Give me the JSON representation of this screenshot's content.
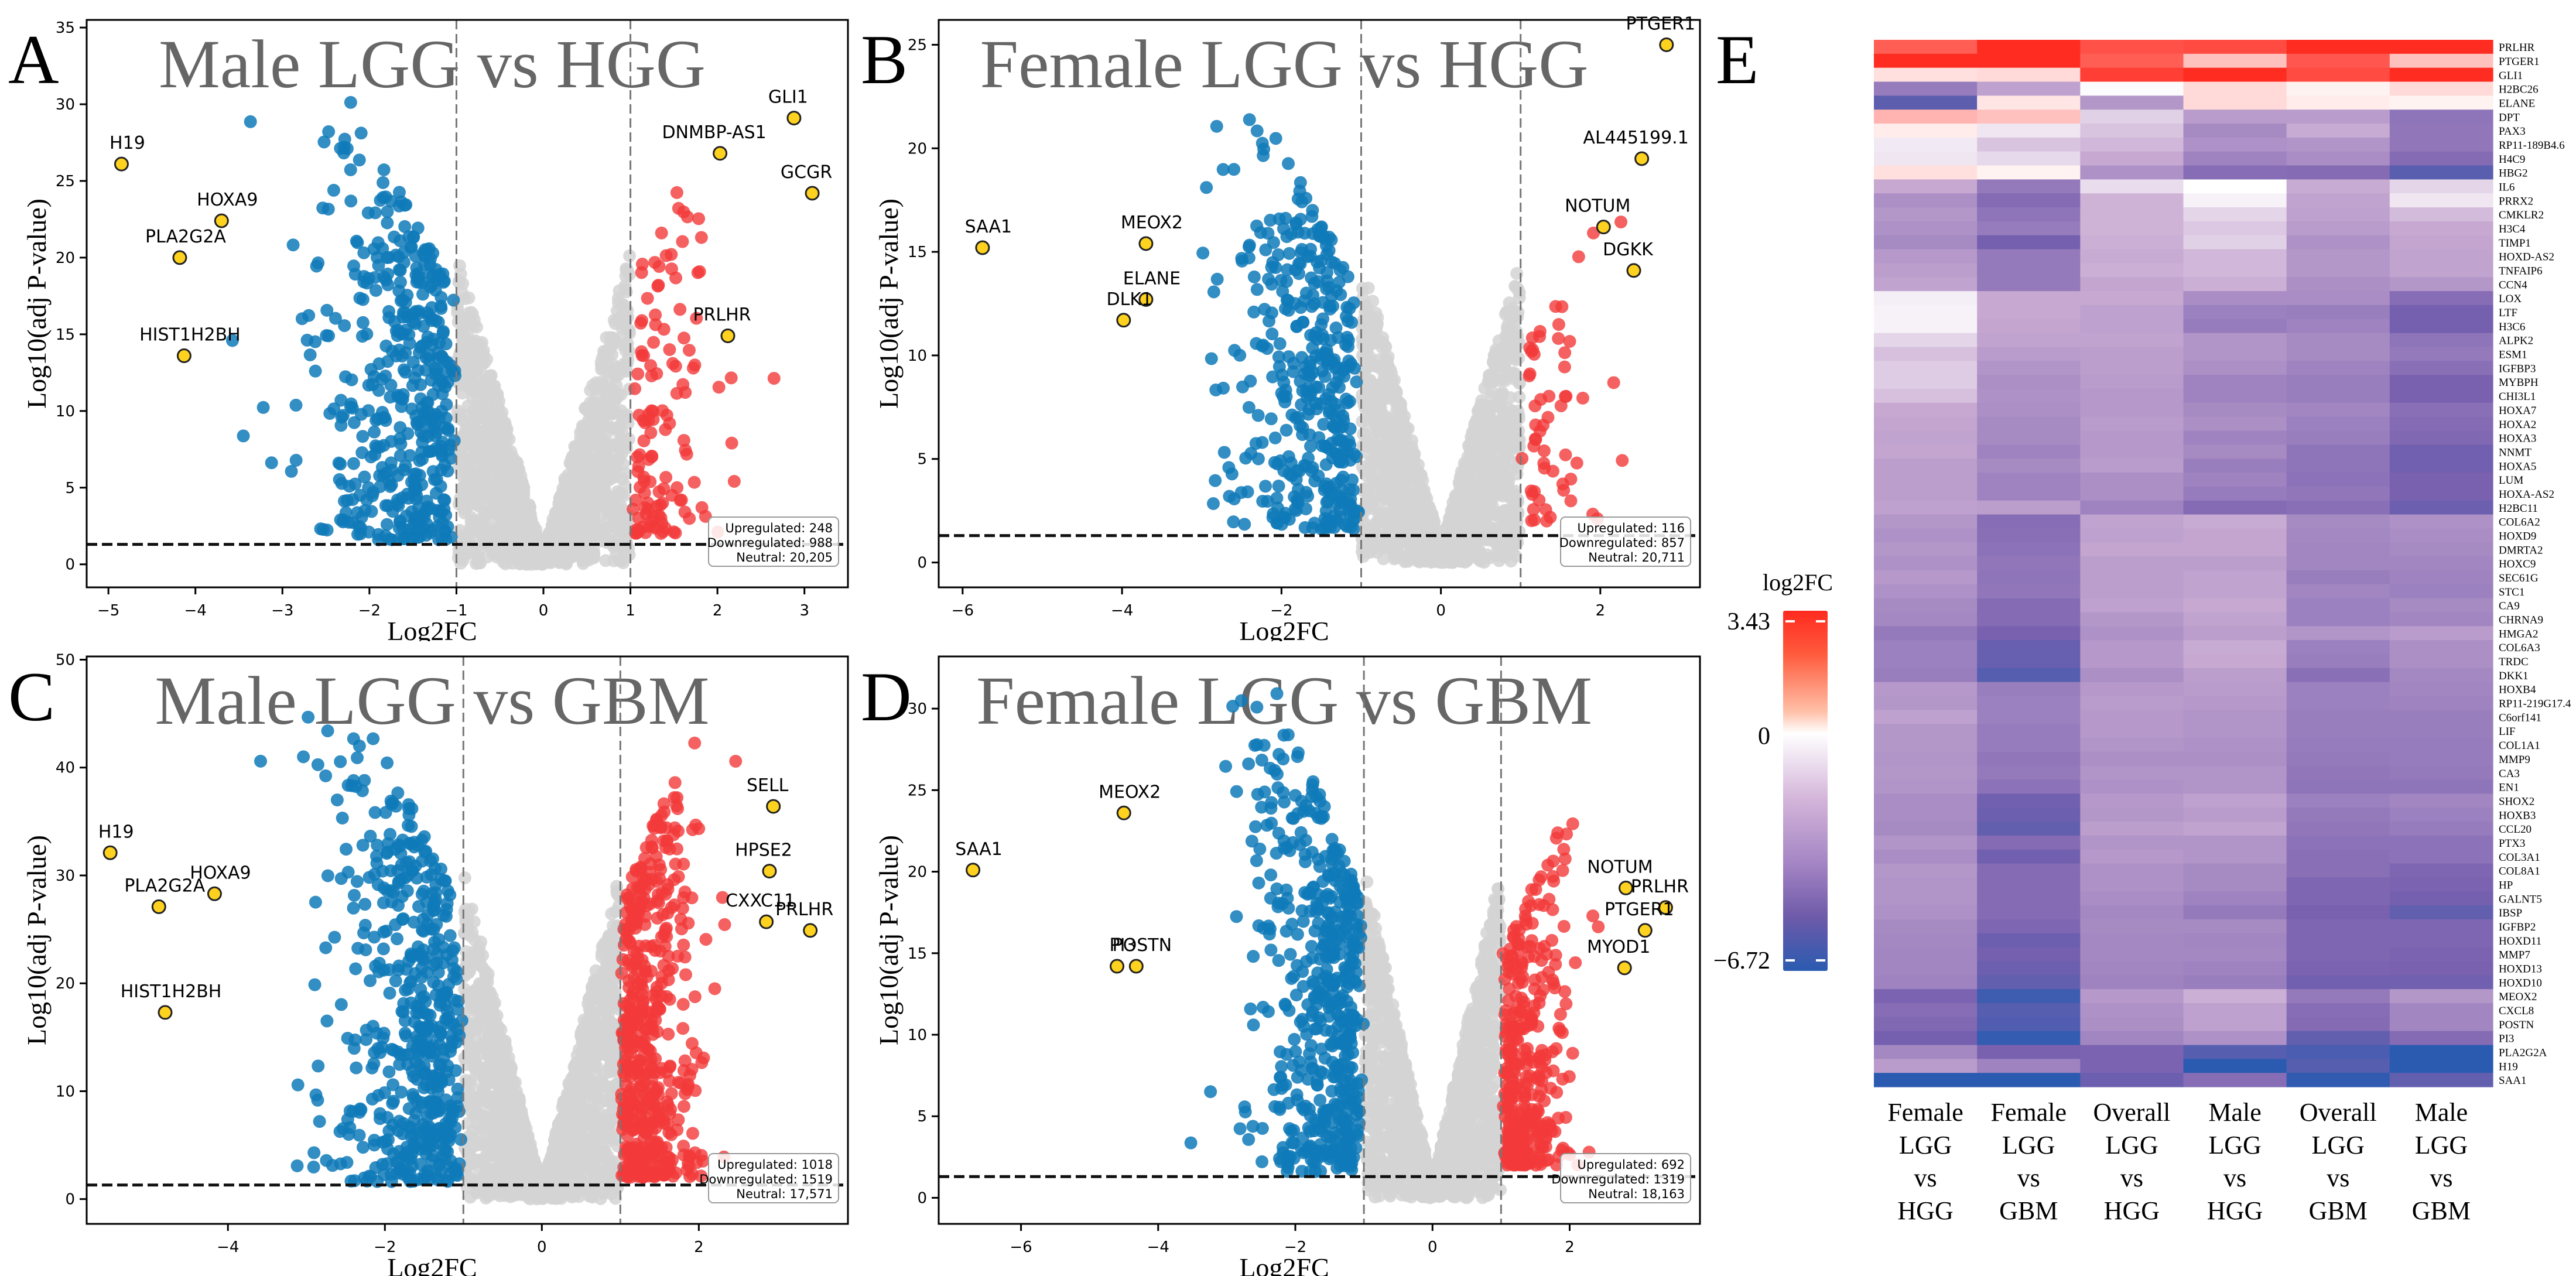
{
  "chart_data": [
    {
      "panel": "A",
      "type": "scatter",
      "subtype": "volcano",
      "title": "Male LGG vs HGG",
      "xlabel": "Log2FC",
      "ylabel": "Log10(adj P-value)",
      "xlim": [
        -5.25,
        3.5
      ],
      "ylim": [
        -1.5,
        35.5
      ],
      "xticks": [
        -5,
        -4,
        -3,
        -2,
        -1,
        0,
        1,
        2,
        3
      ],
      "yticks": [
        0,
        5,
        10,
        15,
        20,
        25,
        30,
        35
      ],
      "fc_threshold": 1,
      "p_threshold_line": 1.3,
      "max_down_y": 31,
      "max_up_y": 31.5,
      "counts": {
        "up_label": "Upregulated",
        "up": "248",
        "down_label": "Downregulated",
        "down": "988",
        "neutral_label": "Neutral",
        "neutral": "20,205"
      },
      "counts_n": {
        "up": 248,
        "down": 988,
        "neutral": 20205
      },
      "labeled_genes": [
        {
          "gene": "H19",
          "x": -4.85,
          "y": 26.1
        },
        {
          "gene": "HOXA9",
          "x": -3.7,
          "y": 22.4
        },
        {
          "gene": "PLA2G2A",
          "x": -4.18,
          "y": 20.0
        },
        {
          "gene": "HIST1H2BH",
          "x": -4.13,
          "y": 13.6
        },
        {
          "gene": "GLI1",
          "x": 2.88,
          "y": 29.1
        },
        {
          "gene": "DNMBP-AS1",
          "x": 2.03,
          "y": 26.8
        },
        {
          "gene": "GCGR",
          "x": 3.09,
          "y": 24.2
        },
        {
          "gene": "PRLHR",
          "x": 2.12,
          "y": 14.9
        }
      ]
    },
    {
      "panel": "B",
      "type": "scatter",
      "subtype": "volcano",
      "title": "Female LGG vs HGG",
      "xlabel": "Log2FC",
      "ylabel": "Log10(adj P-value)",
      "xlim": [
        -6.3,
        3.25
      ],
      "ylim": [
        -1.2,
        26.2
      ],
      "xticks": [
        -6,
        -4,
        -2,
        0,
        2
      ],
      "yticks": [
        0,
        5,
        10,
        15,
        20,
        25
      ],
      "fc_threshold": 1,
      "p_threshold_line": 1.3,
      "max_down_y": 22.6,
      "max_up_y": 17.7,
      "counts": {
        "up_label": "Upregulated",
        "up": "116",
        "down_label": "Downregulated",
        "down": "857",
        "neutral_label": "Neutral",
        "neutral": "20,711"
      },
      "counts_n": {
        "up": 116,
        "down": 857,
        "neutral": 20711
      },
      "labeled_genes": [
        {
          "gene": "SAA1",
          "x": -5.75,
          "y": 15.2
        },
        {
          "gene": "MEOX2",
          "x": -3.7,
          "y": 15.4
        },
        {
          "gene": "ELANE",
          "x": -3.7,
          "y": 12.7
        },
        {
          "gene": "DLK1",
          "x": -3.98,
          "y": 11.7
        },
        {
          "gene": "PTGER1",
          "x": 2.83,
          "y": 25.0
        },
        {
          "gene": "AL445199.1",
          "x": 2.52,
          "y": 19.5
        },
        {
          "gene": "NOTUM",
          "x": 2.04,
          "y": 16.2
        },
        {
          "gene": "DGKK",
          "x": 2.42,
          "y": 14.1
        }
      ]
    },
    {
      "panel": "C",
      "type": "scatter",
      "subtype": "volcano",
      "title": "Male LGG vs GBM",
      "xlabel": "Log2FC",
      "ylabel": "Log10(adj P-value)",
      "xlim": [
        -5.8,
        3.9
      ],
      "ylim": [
        -2.3,
        50.3
      ],
      "xticks": [
        -4,
        -2,
        0,
        2
      ],
      "yticks": [
        0,
        10,
        20,
        30,
        40,
        50
      ],
      "fc_threshold": 1,
      "p_threshold_line": 1.3,
      "max_down_y": 46.5,
      "max_up_y": 47.8,
      "counts": {
        "up_label": "Upregulated",
        "up": "1018",
        "down_label": "Downregulated",
        "down": "1519",
        "neutral_label": "Neutral",
        "neutral": "17,571"
      },
      "counts_n": {
        "up": 1018,
        "down": 1519,
        "neutral": 17571
      },
      "labeled_genes": [
        {
          "gene": "H19",
          "x": -5.5,
          "y": 32.1
        },
        {
          "gene": "HOXA9",
          "x": -4.17,
          "y": 28.3
        },
        {
          "gene": "PLA2G2A",
          "x": -4.88,
          "y": 27.1
        },
        {
          "gene": "HIST1H2BH",
          "x": -4.8,
          "y": 17.3
        },
        {
          "gene": "SELL",
          "x": 2.95,
          "y": 36.4
        },
        {
          "gene": "HPSE2",
          "x": 2.9,
          "y": 30.4
        },
        {
          "gene": "CXXC11",
          "x": 2.86,
          "y": 25.7
        },
        {
          "gene": "PRLHR",
          "x": 3.42,
          "y": 24.9
        }
      ]
    },
    {
      "panel": "D",
      "type": "scatter",
      "subtype": "volcano",
      "title": "Female LGG vs GBM",
      "xlabel": "Log2FC",
      "ylabel": "Log10(adj P-value)",
      "xlim": [
        -7.2,
        3.9
      ],
      "ylim": [
        -1.6,
        33.2
      ],
      "xticks": [
        -6,
        -4,
        -2,
        0,
        2
      ],
      "yticks": [
        0,
        5,
        10,
        15,
        20,
        25,
        30
      ],
      "fc_threshold": 1,
      "p_threshold_line": 1.3,
      "max_down_y": 31.5,
      "max_up_y": 25.3,
      "counts": {
        "up_label": "Upregulated",
        "up": "692",
        "down_label": "Downregulated",
        "down": "1319",
        "neutral_label": "Neutral",
        "neutral": "18,163"
      },
      "counts_n": {
        "up": 692,
        "down": 1319,
        "neutral": 18163
      },
      "labeled_genes": [
        {
          "gene": "SAA1",
          "x": -6.7,
          "y": 20.1
        },
        {
          "gene": "MEOX2",
          "x": -4.5,
          "y": 23.6
        },
        {
          "gene": "PI3",
          "x": -4.6,
          "y": 14.2
        },
        {
          "gene": "POSTN",
          "x": -4.32,
          "y": 14.2
        },
        {
          "gene": "NOTUM",
          "x": 2.82,
          "y": 19.0
        },
        {
          "gene": "PRLHR",
          "x": 3.4,
          "y": 17.8
        },
        {
          "gene": "PTGER1",
          "x": 3.1,
          "y": 16.4
        },
        {
          "gene": "MYOD1",
          "x": 2.8,
          "y": 14.1
        }
      ]
    },
    {
      "panel": "E",
      "type": "heatmap",
      "colorbar": {
        "title": "log2FC",
        "max_label": "3.43",
        "mid_label": "0",
        "min_label": "−6.72",
        "min": -6.72,
        "max": 3.43
      },
      "columns": [
        [
          "Female",
          "LGG",
          "vs",
          "HGG"
        ],
        [
          "Female",
          "LGG",
          "vs",
          "GBM"
        ],
        [
          "Overall",
          "LGG",
          "vs",
          "HGG"
        ],
        [
          "Male",
          "LGG",
          "vs",
          "HGG"
        ],
        [
          "Overall",
          "LGG",
          "vs",
          "GBM"
        ],
        [
          "Male",
          "LGG",
          "vs",
          "GBM"
        ]
      ],
      "rows": [
        "PRLHR",
        "PTGER1",
        "GLI1",
        "H2BC26",
        "ELANE",
        "DPT",
        "PAX3",
        "RP11-189B4.6",
        "H4C9",
        "HBG2",
        "IL6",
        "PRRX2",
        "CMKLR2",
        "H3C4",
        "TIMP1",
        "HOXD-AS2",
        "TNFAIP6",
        "CCN4",
        "LOX",
        "LTF",
        "H3C6",
        "ALPK2",
        "ESM1",
        "IGFBP3",
        "MYBPH",
        "CHI3L1",
        "HOXA7",
        "HOXA2",
        "HOXA3",
        "NNMT",
        "HOXA5",
        "LUM",
        "HOXA-AS2",
        "H2BC11",
        "COL6A2",
        "HOXD9",
        "DMRTA2",
        "HOXC9",
        "SEC61G",
        "STC1",
        "CA9",
        "CHRNA9",
        "HMGA2",
        "COL6A3",
        "TRDC",
        "DKK1",
        "HOXB4",
        "RP11-219G17.4",
        "C6orf141",
        "LIF",
        "COL1A1",
        "MMP9",
        "CA3",
        "EN1",
        "SHOX2",
        "HOXB3",
        "CCL20",
        "PTX3",
        "COL3A1",
        "COL8A1",
        "HP",
        "GALNT5",
        "IBSP",
        "IGFBP2",
        "HOXD11",
        "MMP7",
        "HOXD13",
        "HOXD10",
        "MEOX2",
        "CXCL8",
        "POSTN",
        "PI3",
        "PLA2G2A",
        "H19",
        "SAA1"
      ],
      "values": [
        [
          2.6,
          3.4,
          2.8,
          2.9,
          3.4,
          3.4
        ],
        [
          3.4,
          3.4,
          2.6,
          1.0,
          2.7,
          1.0
        ],
        [
          0.5,
          0.6,
          3.1,
          3.4,
          2.9,
          3.4
        ],
        [
          -3.9,
          -2.4,
          -0.1,
          0.6,
          0.2,
          0.6
        ],
        [
          -5.6,
          0.4,
          -2.8,
          0.6,
          0.3,
          0.2
        ],
        [
          1.2,
          1.0,
          -1.1,
          -2.6,
          -2.6,
          -4.2
        ],
        [
          0.3,
          -0.6,
          -1.4,
          -3.3,
          -2.0,
          -4.1
        ],
        [
          -0.5,
          -1.4,
          -1.7,
          -3.0,
          -2.9,
          -4.1
        ],
        [
          -0.6,
          -0.9,
          -2.1,
          -3.6,
          -3.2,
          -4.6
        ],
        [
          0.5,
          0.2,
          -3.0,
          -4.5,
          -4.6,
          -5.7
        ],
        [
          -2.1,
          -4.0,
          -0.8,
          0.0,
          -2.0,
          -1.0
        ],
        [
          -3.1,
          -4.6,
          -1.8,
          -0.3,
          -2.3,
          -0.6
        ],
        [
          -2.8,
          -4.2,
          -1.8,
          -1.0,
          -2.4,
          -1.6
        ],
        [
          -3.0,
          -3.9,
          -1.8,
          -1.3,
          -2.6,
          -2.1
        ],
        [
          -3.3,
          -5.1,
          -1.9,
          -1.1,
          -3.0,
          -2.2
        ],
        [
          -2.7,
          -4.0,
          -2.0,
          -1.7,
          -2.8,
          -2.3
        ],
        [
          -2.5,
          -4.0,
          -1.9,
          -1.7,
          -2.8,
          -2.3
        ],
        [
          -2.3,
          -4.0,
          -2.2,
          -1.9,
          -3.1,
          -2.8
        ],
        [
          -0.4,
          -2.1,
          -2.1,
          -3.2,
          -3.2,
          -4.5
        ],
        [
          -0.3,
          -2.1,
          -2.4,
          -3.7,
          -3.8,
          -5.1
        ],
        [
          -0.3,
          -2.2,
          -2.4,
          -3.9,
          -3.6,
          -5.1
        ],
        [
          -1.0,
          -2.3,
          -2.3,
          -2.9,
          -3.3,
          -4.2
        ],
        [
          -1.5,
          -2.6,
          -2.5,
          -2.9,
          -3.3,
          -4.0
        ],
        [
          -1.2,
          -2.9,
          -2.5,
          -3.1,
          -3.6,
          -4.4
        ],
        [
          -1.2,
          -3.1,
          -2.6,
          -3.6,
          -3.8,
          -5.0
        ],
        [
          -1.5,
          -3.0,
          -2.7,
          -3.6,
          -3.8,
          -5.0
        ],
        [
          -2.1,
          -3.1,
          -2.7,
          -3.3,
          -3.5,
          -4.4
        ],
        [
          -2.2,
          -3.3,
          -2.6,
          -3.1,
          -3.7,
          -4.6
        ],
        [
          -2.3,
          -3.3,
          -2.7,
          -3.6,
          -3.8,
          -4.7
        ],
        [
          -2.2,
          -3.6,
          -2.7,
          -3.3,
          -4.2,
          -5.2
        ],
        [
          -2.5,
          -3.3,
          -2.6,
          -3.8,
          -4.2,
          -5.2
        ],
        [
          -2.5,
          -3.6,
          -3.1,
          -3.6,
          -4.3,
          -5.0
        ],
        [
          -2.5,
          -3.6,
          -3.1,
          -3.9,
          -4.1,
          -5.0
        ],
        [
          -2.4,
          -2.5,
          -3.6,
          -4.6,
          -4.4,
          -5.3
        ],
        [
          -2.8,
          -4.5,
          -2.3,
          -2.0,
          -3.3,
          -3.0
        ],
        [
          -3.0,
          -4.4,
          -2.4,
          -2.2,
          -3.4,
          -3.2
        ],
        [
          -2.8,
          -4.3,
          -2.2,
          -2.2,
          -3.5,
          -3.3
        ],
        [
          -3.0,
          -4.1,
          -2.5,
          -2.5,
          -3.5,
          -3.5
        ],
        [
          -2.7,
          -4.2,
          -2.5,
          -2.3,
          -3.8,
          -3.6
        ],
        [
          -3.0,
          -4.1,
          -2.5,
          -2.3,
          -3.5,
          -3.7
        ],
        [
          -3.3,
          -4.6,
          -2.4,
          -2.1,
          -3.7,
          -3.3
        ],
        [
          -3.4,
          -4.6,
          -2.8,
          -2.3,
          -3.7,
          -3.5
        ],
        [
          -4.0,
          -5.0,
          -3.0,
          -2.5,
          -2.9,
          -2.6
        ],
        [
          -3.7,
          -5.4,
          -2.7,
          -2.0,
          -3.7,
          -3.1
        ],
        [
          -3.7,
          -5.4,
          -2.7,
          -2.1,
          -3.8,
          -3.1
        ],
        [
          -3.8,
          -5.8,
          -3.1,
          -2.5,
          -4.4,
          -3.4
        ],
        [
          -2.7,
          -3.8,
          -2.7,
          -2.6,
          -3.7,
          -3.5
        ],
        [
          -2.8,
          -3.7,
          -2.6,
          -2.7,
          -3.7,
          -3.6
        ],
        [
          -2.4,
          -3.7,
          -2.7,
          -2.9,
          -3.8,
          -3.8
        ],
        [
          -2.8,
          -3.9,
          -2.7,
          -2.9,
          -3.8,
          -3.8
        ],
        [
          -2.8,
          -3.9,
          -2.9,
          -3.0,
          -3.9,
          -3.9
        ],
        [
          -2.9,
          -4.1,
          -3.1,
          -3.1,
          -4.0,
          -3.9
        ],
        [
          -2.8,
          -4.0,
          -2.9,
          -2.9,
          -4.1,
          -4.0
        ],
        [
          -2.9,
          -4.3,
          -3.0,
          -2.9,
          -4.2,
          -4.2
        ],
        [
          -3.2,
          -5.2,
          -2.7,
          -2.4,
          -3.7,
          -3.5
        ],
        [
          -3.2,
          -5.3,
          -2.8,
          -2.6,
          -4.0,
          -3.7
        ],
        [
          -3.3,
          -5.5,
          -2.5,
          -2.3,
          -4.1,
          -3.9
        ],
        [
          -2.9,
          -4.6,
          -2.9,
          -2.9,
          -4.3,
          -4.3
        ],
        [
          -3.2,
          -5.2,
          -2.7,
          -2.9,
          -4.4,
          -4.3
        ],
        [
          -2.8,
          -4.6,
          -3.0,
          -3.3,
          -4.4,
          -4.8
        ],
        [
          -2.9,
          -4.6,
          -3.0,
          -3.3,
          -4.8,
          -4.9
        ],
        [
          -2.9,
          -4.6,
          -3.2,
          -3.6,
          -4.8,
          -5.1
        ],
        [
          -3.0,
          -4.6,
          -3.4,
          -4.0,
          -5.0,
          -5.5
        ],
        [
          -3.3,
          -4.8,
          -3.3,
          -3.3,
          -4.8,
          -4.8
        ],
        [
          -3.4,
          -5.3,
          -3.4,
          -3.5,
          -4.8,
          -4.8
        ],
        [
          -3.5,
          -5.1,
          -3.4,
          -3.4,
          -4.8,
          -4.9
        ],
        [
          -3.5,
          -5.3,
          -3.5,
          -3.6,
          -4.9,
          -5.0
        ],
        [
          -3.6,
          -5.5,
          -3.6,
          -3.8,
          -5.2,
          -5.2
        ],
        [
          -4.9,
          -6.3,
          -2.7,
          -1.9,
          -4.0,
          -2.8
        ],
        [
          -4.5,
          -5.8,
          -3.0,
          -2.4,
          -4.5,
          -3.5
        ],
        [
          -4.7,
          -5.9,
          -3.1,
          -2.4,
          -4.6,
          -3.5
        ],
        [
          -5.1,
          -6.5,
          -3.5,
          -3.0,
          -5.5,
          -4.6
        ],
        [
          -3.4,
          -5.0,
          -4.9,
          -5.8,
          -6.0,
          -6.7
        ],
        [
          -2.6,
          -3.6,
          -4.9,
          -6.7,
          -5.8,
          -6.7
        ],
        [
          -6.7,
          -6.7,
          -5.3,
          -4.5,
          -6.6,
          -5.5
        ]
      ]
    }
  ],
  "figure": {
    "panel_letters": [
      "A",
      "B",
      "C",
      "D",
      "E"
    ],
    "colors": {
      "down": "#0f7ab8",
      "up": "#f23a3a",
      "neutral": "#d3d3d3",
      "highlight": "#ffd21f",
      "title_gray": "#666666",
      "heat_high": "#ff2a1f",
      "heat_mid": "#ffffff",
      "heat_low": "#2a5bb0"
    }
  }
}
